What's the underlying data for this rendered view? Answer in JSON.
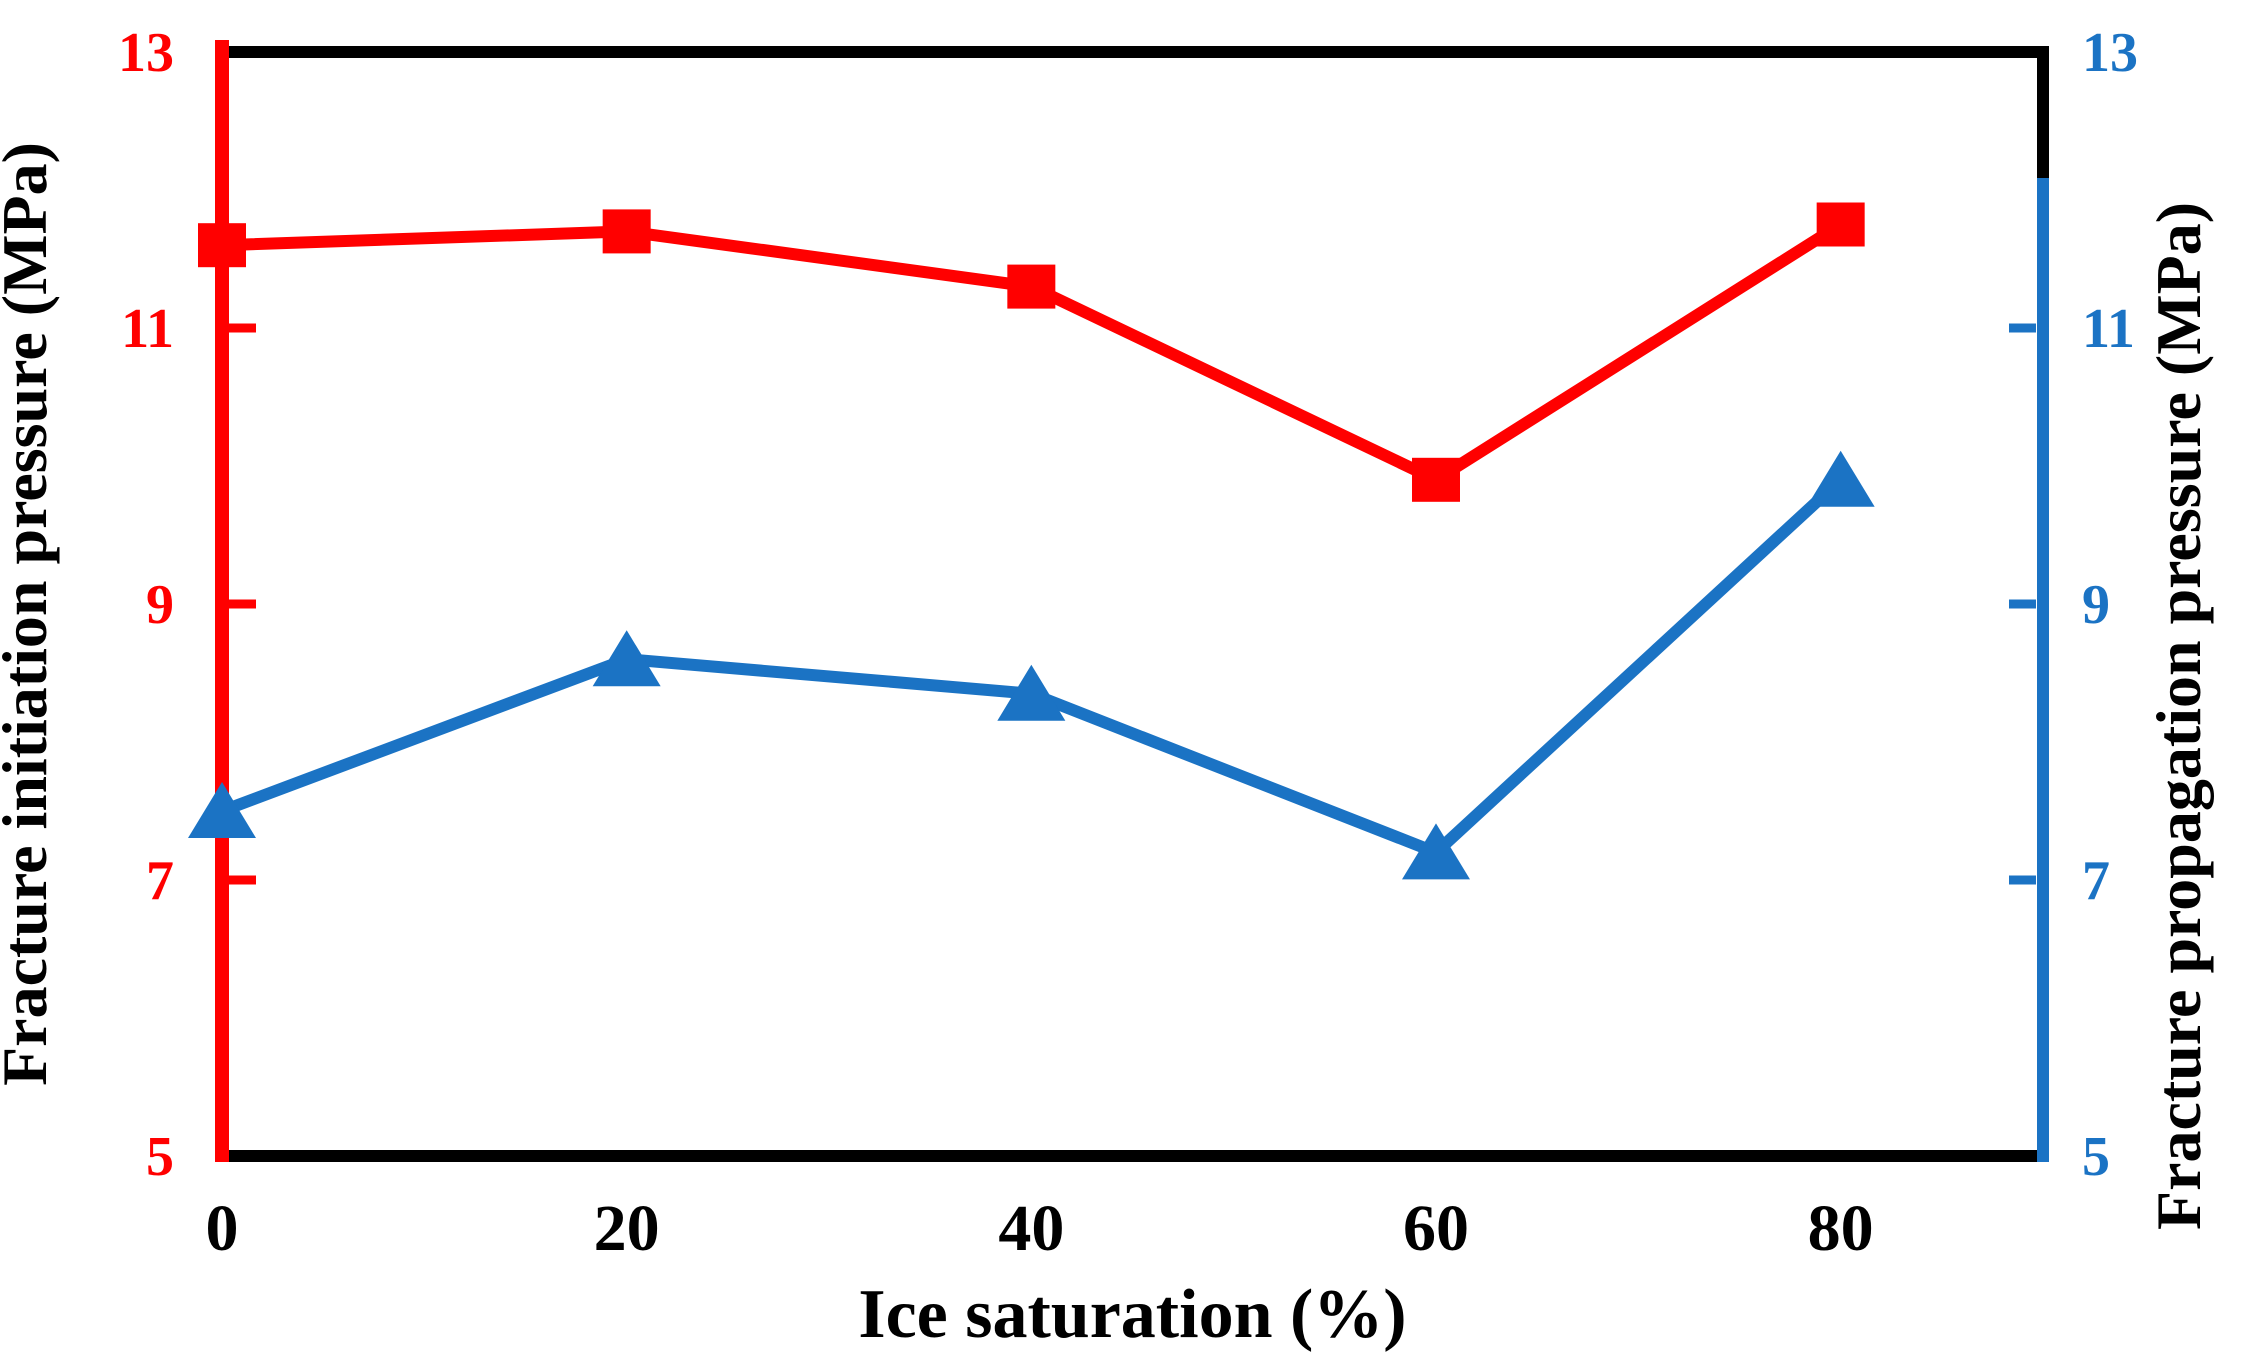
{
  "figure": {
    "background": "#ffffff",
    "border_color": "#000000"
  },
  "chart_data": {
    "type": "line",
    "title": "",
    "xlabel": "Ice saturation (%)",
    "x": [
      0,
      20,
      40,
      60,
      80
    ],
    "x_tick_labels": [
      "0",
      "20",
      "40",
      "60",
      "80"
    ],
    "xlim": [
      0,
      90
    ],
    "grid": false,
    "legend": "none",
    "left_axis": {
      "label": "Fracture initiation pressure (MPa)",
      "color": "#FF0000",
      "range": [
        5,
        13
      ],
      "ticks": [
        5,
        7,
        9,
        11,
        13
      ],
      "inner_ticks": [
        7,
        9,
        11
      ]
    },
    "right_axis": {
      "label": "Fracture propagation pressure (MPa)",
      "color": "#1B73C4",
      "range": [
        5,
        13
      ],
      "ticks": [
        5,
        7,
        9,
        11,
        13
      ],
      "inner_ticks": [
        7,
        9,
        11
      ]
    },
    "series": [
      {
        "name": "Fracture initiation pressure",
        "axis": "left",
        "color": "#FF0000",
        "marker": "square",
        "values": [
          11.6,
          11.7,
          11.3,
          9.9,
          11.75
        ]
      },
      {
        "name": "Fracture propagation pressure",
        "axis": "right",
        "color": "#1B73C4",
        "marker": "triangle",
        "values": [
          7.5,
          8.6,
          8.35,
          7.2,
          9.9
        ]
      }
    ]
  }
}
